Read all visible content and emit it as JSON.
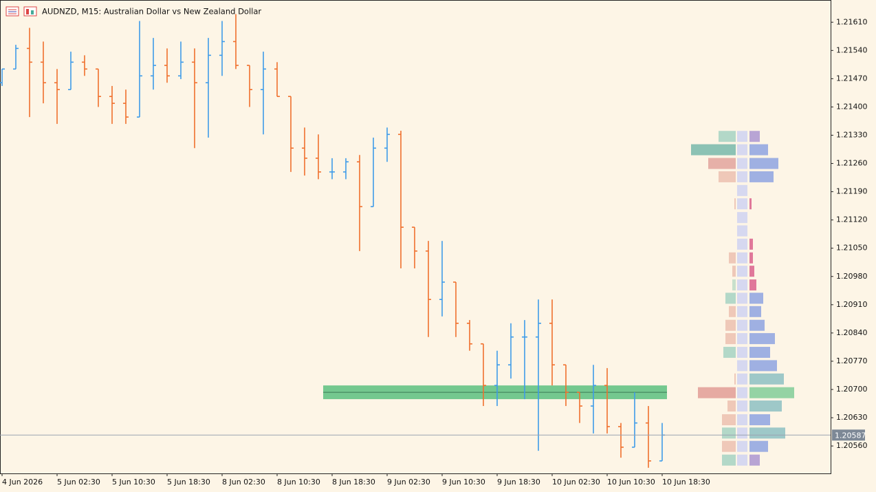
{
  "chart_data": {
    "type": "ohlc",
    "title": "AUDNZD, M15:  Australian Dollar vs New Zealand Dollar",
    "up_color": "#3d9be9",
    "down_color": "#f06f2c",
    "ylim": [
      1.20492,
      1.21665
    ],
    "yticks": [
      {
        "value": 1.2161,
        "label": "1.21610"
      },
      {
        "value": 1.2154,
        "label": "1.21540"
      },
      {
        "value": 1.2147,
        "label": "1.21470"
      },
      {
        "value": 1.214,
        "label": "1.21400"
      },
      {
        "value": 1.2133,
        "label": "1.21330"
      },
      {
        "value": 1.2126,
        "label": "1.21260"
      },
      {
        "value": 1.2119,
        "label": "1.21190"
      },
      {
        "value": 1.2112,
        "label": "1.21120"
      },
      {
        "value": 1.2105,
        "label": "1.21050"
      },
      {
        "value": 1.2098,
        "label": "1.20980"
      },
      {
        "value": 1.2091,
        "label": "1.20910"
      },
      {
        "value": 1.2084,
        "label": "1.20840"
      },
      {
        "value": 1.2077,
        "label": "1.20770"
      },
      {
        "value": 1.207,
        "label": "1.20700"
      },
      {
        "value": 1.2063,
        "label": "1.20630"
      },
      {
        "value": 1.2056,
        "label": "1.20560"
      }
    ],
    "xtick_labels": [
      "4 Jun 2026",
      "5 Jun 02:30",
      "5 Jun 10:30",
      "5 Jun 18:30",
      "8 Jun 02:30",
      "8 Jun 10:30",
      "8 Jun 18:30",
      "9 Jun 02:30",
      "9 Jun 10:30",
      "9 Jun 18:30",
      "10 Jun 02:30",
      "10 Jun 10:30",
      "10 Jun 18:30"
    ],
    "open": [
      1.2146,
      1.21494,
      1.21545,
      1.21511,
      1.2146,
      1.21443,
      1.21511,
      1.21494,
      1.21426,
      1.21409,
      1.21375,
      1.21477,
      1.21503,
      1.21477,
      1.21511,
      1.2146,
      1.21528,
      1.21562,
      1.21503,
      1.21443,
      1.21494,
      1.21426,
      1.21298,
      1.21273,
      1.21239,
      1.21239,
      1.21264,
      1.21153,
      1.21298,
      1.21332,
      1.21102,
      1.21043,
      1.20923,
      1.20966,
      1.20864,
      1.20813,
      1.2071,
      1.20761,
      1.2083,
      1.2083,
      1.20864,
      1.20761,
      1.20693,
      1.20659,
      1.2071,
      1.20608,
      1.20557,
      1.20617,
      1.20523
    ],
    "high": [
      1.21494,
      1.21554,
      1.21596,
      1.21562,
      1.21494,
      1.21537,
      1.21528,
      1.21494,
      1.21452,
      1.21443,
      1.21613,
      1.21571,
      1.21545,
      1.21562,
      1.21545,
      1.21571,
      1.21613,
      1.2163,
      1.21503,
      1.21537,
      1.21511,
      1.21426,
      1.21349,
      1.21332,
      1.21273,
      1.21273,
      1.21281,
      1.21324,
      1.21349,
      1.21341,
      1.21102,
      1.21068,
      1.21068,
      1.20966,
      1.20872,
      1.20813,
      1.20796,
      1.20864,
      1.20872,
      1.20923,
      1.20923,
      1.20761,
      1.20693,
      1.20761,
      1.20753,
      1.20617,
      1.20693,
      1.20659,
      1.20617
    ],
    "low": [
      1.21452,
      1.21494,
      1.21375,
      1.21409,
      1.21358,
      1.21443,
      1.21477,
      1.214,
      1.21358,
      1.21358,
      1.21375,
      1.21443,
      1.2146,
      1.21469,
      1.21298,
      1.21324,
      1.21477,
      1.21494,
      1.214,
      1.21332,
      1.21426,
      1.21239,
      1.2123,
      1.21221,
      1.21221,
      1.21221,
      1.21043,
      1.21153,
      1.21264,
      1.21,
      1.21,
      1.2083,
      1.20881,
      1.2083,
      1.20796,
      1.20659,
      1.20659,
      1.20727,
      1.20676,
      1.20548,
      1.2071,
      1.20659,
      1.20617,
      1.20591,
      1.20591,
      1.20531,
      1.20557,
      1.20506,
      1.20523
    ],
    "close": [
      1.21494,
      1.21545,
      1.21511,
      1.2146,
      1.21443,
      1.21511,
      1.21494,
      1.21426,
      1.21409,
      1.21375,
      1.21477,
      1.21503,
      1.21477,
      1.21511,
      1.2146,
      1.21528,
      1.21562,
      1.21503,
      1.21443,
      1.21494,
      1.21426,
      1.21298,
      1.21273,
      1.21239,
      1.21239,
      1.21264,
      1.21153,
      1.21298,
      1.21332,
      1.21102,
      1.21043,
      1.20923,
      1.20966,
      1.20864,
      1.20813,
      1.2071,
      1.20761,
      1.2083,
      1.2083,
      1.20864,
      1.20761,
      1.20693,
      1.20659,
      1.2071,
      1.20608,
      1.20557,
      1.20617,
      1.20523,
      1.20587
    ],
    "last_price": 1.20587,
    "zone": {
      "top": 1.2071,
      "bottom": 1.20676,
      "line": 1.20693,
      "color": "#5cbf7f"
    },
    "profile": {
      "prices": [
        1.21327,
        1.21294,
        1.2126,
        1.21227,
        1.21193,
        1.2116,
        1.21126,
        1.21093,
        1.2106,
        1.21026,
        1.20993,
        1.20959,
        1.20926,
        1.20893,
        1.20859,
        1.20826,
        1.20792,
        1.20759,
        1.20726,
        1.20692,
        1.20659,
        1.20625,
        1.20592,
        1.20559,
        1.20525
      ],
      "sell": [
        25,
        65,
        40,
        25,
        0,
        2,
        0,
        0,
        0,
        10,
        5,
        5,
        15,
        10,
        15,
        15,
        18,
        0,
        2,
        55,
        12,
        20,
        20,
        20,
        20
      ],
      "buy": [
        15,
        27,
        42,
        35,
        0,
        3,
        0,
        0,
        5,
        5,
        7,
        10,
        20,
        17,
        22,
        37,
        30,
        40,
        50,
        65,
        47,
        30,
        52,
        27,
        15
      ],
      "sell_colors": [
        "#b3d8c8",
        "#8cc2b4",
        "#e6b0a8",
        "#efc8b8",
        "#efc8b8",
        "#efc8b8",
        "#efc8b8",
        "#efc8b8",
        "#efc8b8",
        "#efc8b8",
        "#efc8b8",
        "#c8e0cc",
        "#b3d8c8",
        "#efc8b8",
        "#efc8b8",
        "#efc8b8",
        "#b3d8c8",
        "#efc8b8",
        "#efc8b8",
        "#e6aaa2",
        "#efc8b8",
        "#efc8b8",
        "#b3d8c8",
        "#efc8b8",
        "#b3d8c8"
      ],
      "buy_colors": [
        "#b8a4d4",
        "#9fb0e2",
        "#9fb0e2",
        "#9fb0e2",
        "#9fb0e2",
        "#e0789a",
        "#9fb0e2",
        "#9fb0e2",
        "#e0789a",
        "#e0789a",
        "#e0789a",
        "#e0789a",
        "#9fb0e2",
        "#9fb0e2",
        "#9fb0e2",
        "#9fb0e2",
        "#9fb0e2",
        "#9fb0e2",
        "#9ec8c8",
        "#94d3a4",
        "#9ec8c8",
        "#9fb0e2",
        "#9ec8c8",
        "#9fb0e2",
        "#b8a4d4"
      ]
    }
  }
}
